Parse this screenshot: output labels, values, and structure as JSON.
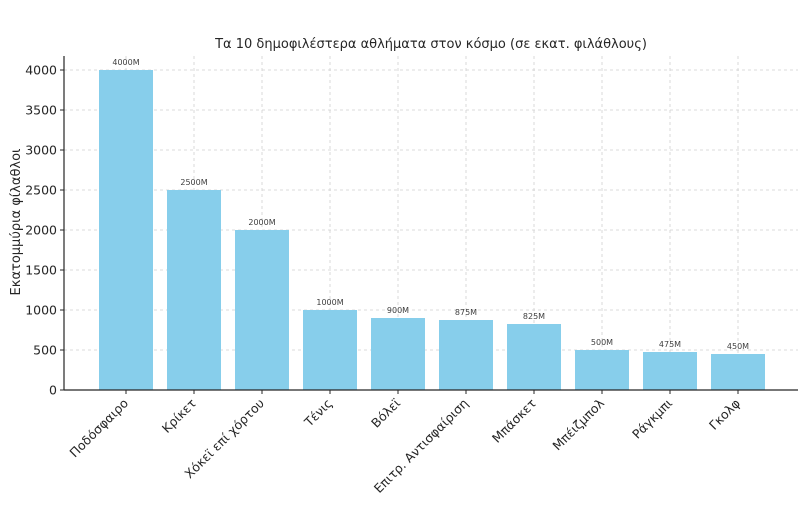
{
  "chart_data": {
    "type": "bar",
    "title": "Τα 10 δημοφιλέστερα αθλήματα στον κόσμο (σε εκατ. φιλάθλους)",
    "xlabel": "",
    "ylabel": "Εκατομμύρια φίλαθλοι",
    "categories": [
      "Ποδόσφαιρο",
      "Κρίκετ",
      "Χόκεϊ επί χόρτου",
      "Τένις",
      "Βόλεϊ",
      "Επιτρ. Αντισφαίριση",
      "Μπάσκετ",
      "Μπέιζμπολ",
      "Ράγκμπι",
      "Γκολφ"
    ],
    "values": [
      4000,
      2500,
      2000,
      1000,
      900,
      875,
      825,
      500,
      475,
      450
    ],
    "data_labels": [
      "4000M",
      "2500M",
      "2000M",
      "1000M",
      "900M",
      "875M",
      "825M",
      "500M",
      "475M",
      "450M"
    ],
    "yticks": [
      0,
      500,
      1000,
      1500,
      2000,
      2500,
      3000,
      3500,
      4000
    ],
    "ylim": [
      0,
      4200
    ],
    "grid": true,
    "bar_color": "#87ceeb"
  }
}
